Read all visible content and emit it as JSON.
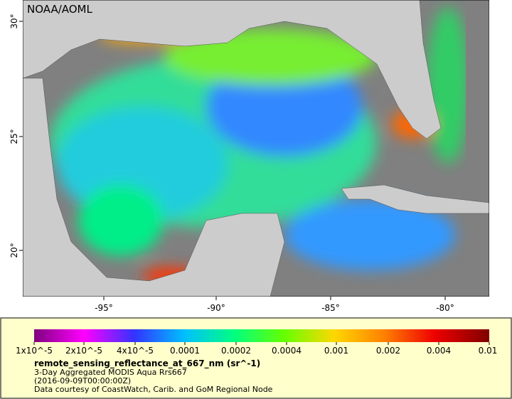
{
  "map": {
    "watermark": "NOAA/AOML",
    "lat_labels": [
      "30°",
      "25°",
      "20°"
    ],
    "lon_labels": [
      "-95°",
      "-90°",
      "-85°",
      "-80°"
    ]
  },
  "colorbar": {
    "tick_labels": [
      "1x10^-5",
      "2x10^-5",
      "4x10^-5",
      "0.0001",
      "0.0002",
      "0.0004",
      "0.001",
      "0.002",
      "0.004",
      "0.01"
    ]
  },
  "legend": {
    "title": "remote_sensing_reflectance_at_667_nm (sr^-1)",
    "lines": [
      "3-Day Aggregated MODIS Aqua Rrs667",
      "(2016-09-09T00:00:00Z)",
      "Data courtesy of CoastWatch, Carib. and GoM Regional Node"
    ]
  }
}
